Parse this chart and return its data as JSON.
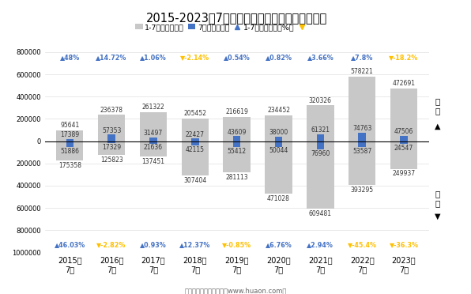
{
  "title": "2015-2023年7月西安高新综合保税区进、出口额",
  "years": [
    "2015年\n7月",
    "2016年\n7月",
    "2017年\n7月",
    "2018年\n7月",
    "2019年\n7月",
    "2020年\n7月",
    "2021年\n7月",
    "2022年\n7月",
    "2023年\n7月"
  ],
  "export_1_7": [
    95641,
    236378,
    261322,
    205452,
    216619,
    234452,
    320326,
    578221,
    472691
  ],
  "export_7": [
    17389,
    57353,
    31497,
    22427,
    43609,
    38000,
    61321,
    74763,
    47506
  ],
  "import_1_7": [
    175358,
    125823,
    137451,
    307404,
    281113,
    471028,
    609481,
    393295,
    249937
  ],
  "import_7": [
    51886,
    17329,
    21636,
    42115,
    55412,
    50044,
    76960,
    53587,
    24547
  ],
  "export_growth": [
    "48%",
    "14.72%",
    "1.06%",
    "-2.14%",
    "0.54%",
    "0.82%",
    "3.66%",
    "7.8%",
    "-18.2%"
  ],
  "export_growth_up": [
    true,
    true,
    true,
    false,
    true,
    true,
    true,
    true,
    false
  ],
  "import_growth": [
    "46.03%",
    "-2.82%",
    "0.93%",
    "12.37%",
    "-0.85%",
    "6.76%",
    "2.94%",
    "-45.4%",
    "-36.3%"
  ],
  "import_growth_up": [
    true,
    false,
    true,
    true,
    false,
    true,
    true,
    false,
    false
  ],
  "bar_color_1_7": "#c8c8c8",
  "bar_color_7": "#4472c4",
  "arrow_up_color": "#4472c4",
  "arrow_down_color": "#ffc000",
  "footer": "制图：华经产业研究院（www.huaon.com）",
  "ylim": [
    -1000000,
    800000
  ],
  "yticks": [
    -1000000,
    -800000,
    -600000,
    -400000,
    -200000,
    0,
    200000,
    400000,
    600000,
    800000
  ],
  "background_color": "#ffffff"
}
